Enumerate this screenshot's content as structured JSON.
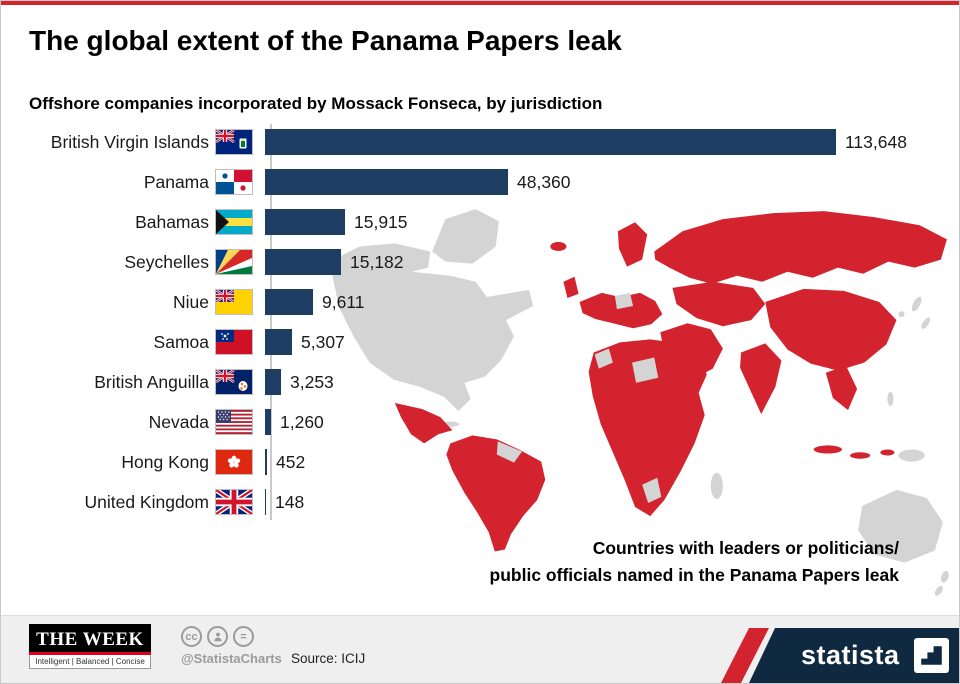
{
  "chart_data": {
    "type": "bar",
    "orientation": "horizontal",
    "title": "The global extent of the Panama Papers leak",
    "subtitle": "Offshore companies incorporated by Mossack Fonseca, by jurisdiction",
    "categories": [
      "British Virgin Islands",
      "Panama",
      "Bahamas",
      "Seychelles",
      "Niue",
      "Samoa",
      "British Anguilla",
      "Nevada",
      "Hong Kong",
      "United Kingdom"
    ],
    "values": [
      113648,
      48360,
      15915,
      15182,
      9611,
      5307,
      3253,
      1260,
      452,
      148
    ],
    "value_labels": [
      "113,648",
      "48,360",
      "15,915",
      "15,182",
      "9,611",
      "5,307",
      "3,253",
      "1,260",
      "452",
      "148"
    ],
    "flags": [
      "british-virgin-islands",
      "panama",
      "bahamas",
      "seychelles",
      "niue",
      "samoa",
      "british-anguilla",
      "nevada-us",
      "hong-kong",
      "united-kingdom"
    ],
    "xlim": [
      0,
      120000
    ],
    "grid": false,
    "legend": false
  },
  "map": {
    "annotation_line1": "Countries with leaders or politicians/",
    "annotation_line2": "public officials named in the Panama Papers leak"
  },
  "footer": {
    "week_title": "THE WEEK",
    "week_tagline": "Intelligent | Balanced | Concise",
    "cc_icons": [
      "cc",
      "attribution",
      "equal"
    ],
    "cc_handle": "@StatistaCharts",
    "source": "Source: ICIJ",
    "statista_wordmark": "statista"
  },
  "colors": {
    "accent_red": "#d2232e",
    "bar_navy": "#1d3d62",
    "statista_navy": "#0f2940",
    "map_red": "#d2232e",
    "map_gray": "#d4d4d4"
  }
}
